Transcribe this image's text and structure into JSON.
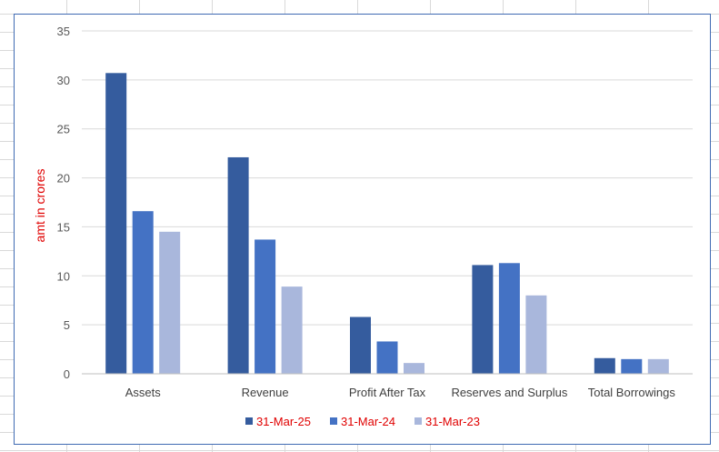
{
  "chart_data": {
    "type": "bar",
    "title": "",
    "xlabel": "",
    "ylabel": "amt in crores",
    "ylim": [
      0,
      35
    ],
    "yticks": [
      0,
      5,
      10,
      15,
      20,
      25,
      30,
      35
    ],
    "grid": true,
    "legend_position": "bottom",
    "categories": [
      "Assets",
      "Revenue",
      "Profit After Tax",
      "Reserves and Surplus",
      "Total Borrowings"
    ],
    "series": [
      {
        "name": "31-Mar-25",
        "color": "#355c9e",
        "values": [
          30.7,
          22.1,
          5.8,
          11.1,
          1.6
        ]
      },
      {
        "name": "31-Mar-24",
        "color": "#4472c4",
        "values": [
          16.6,
          13.7,
          3.3,
          11.3,
          1.5
        ]
      },
      {
        "name": "31-Mar-23",
        "color": "#a9b7dc",
        "values": [
          14.5,
          8.9,
          1.1,
          8.0,
          1.5
        ]
      }
    ]
  }
}
